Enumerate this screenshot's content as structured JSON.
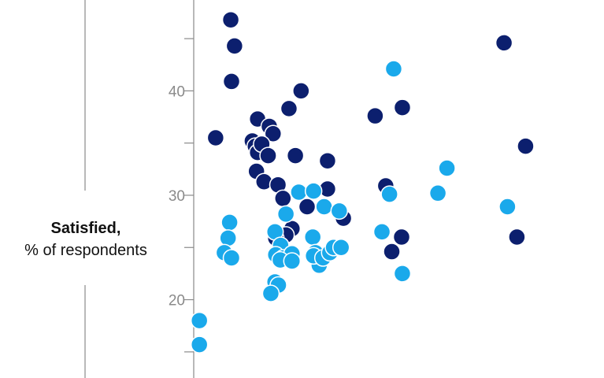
{
  "chart_data": {
    "type": "scatter",
    "ylabel_bold": "Satisfied,",
    "ylabel_unit": "% of respondents",
    "ylim": [
      12.5,
      48.7
    ],
    "xlim": [
      0,
      100
    ],
    "yticks": [
      20,
      30,
      40
    ],
    "minor_yticks": [
      15,
      25,
      35,
      45
    ],
    "grid": false,
    "colors": {
      "series_a": "#0c1f6e",
      "series_b": "#1aa9eb",
      "axis": "#8a8a8a"
    },
    "series": [
      {
        "color": "#0c1f6e",
        "points": [
          {
            "x": 9.8,
            "y": 46.8
          },
          {
            "x": 10.8,
            "y": 44.3
          },
          {
            "x": 10.0,
            "y": 40.9
          },
          {
            "x": 5.8,
            "y": 35.5
          },
          {
            "x": 16.9,
            "y": 37.3
          },
          {
            "x": 20.0,
            "y": 36.6
          },
          {
            "x": 21.0,
            "y": 35.9
          },
          {
            "x": 15.5,
            "y": 35.2
          },
          {
            "x": 16.3,
            "y": 34.7
          },
          {
            "x": 16.9,
            "y": 34.1
          },
          {
            "x": 18.0,
            "y": 34.9
          },
          {
            "x": 19.7,
            "y": 33.8
          },
          {
            "x": 16.6,
            "y": 32.3
          },
          {
            "x": 18.6,
            "y": 31.3
          },
          {
            "x": 22.3,
            "y": 31.0
          },
          {
            "x": 25.2,
            "y": 38.3
          },
          {
            "x": 28.4,
            "y": 40.0
          },
          {
            "x": 26.9,
            "y": 33.8
          },
          {
            "x": 23.6,
            "y": 29.7
          },
          {
            "x": 30.0,
            "y": 28.9
          },
          {
            "x": 35.4,
            "y": 33.3
          },
          {
            "x": 35.4,
            "y": 30.6
          },
          {
            "x": 39.6,
            "y": 27.8
          },
          {
            "x": 26.0,
            "y": 26.8
          },
          {
            "x": 24.4,
            "y": 26.2
          },
          {
            "x": 21.7,
            "y": 25.9
          },
          {
            "x": 48.0,
            "y": 37.6
          },
          {
            "x": 55.2,
            "y": 38.4
          },
          {
            "x": 50.8,
            "y": 30.9
          },
          {
            "x": 52.4,
            "y": 24.6
          },
          {
            "x": 55.0,
            "y": 26.0
          },
          {
            "x": 82.1,
            "y": 44.6
          },
          {
            "x": 87.8,
            "y": 34.7
          },
          {
            "x": 85.5,
            "y": 26.0
          }
        ]
      },
      {
        "color": "#1aa9eb",
        "points": [
          {
            "x": 1.5,
            "y": 18.0
          },
          {
            "x": 1.5,
            "y": 15.7
          },
          {
            "x": 9.5,
            "y": 27.4
          },
          {
            "x": 9.1,
            "y": 25.9
          },
          {
            "x": 8.1,
            "y": 24.5
          },
          {
            "x": 10.0,
            "y": 24.0
          },
          {
            "x": 24.4,
            "y": 28.2
          },
          {
            "x": 21.5,
            "y": 26.5
          },
          {
            "x": 23.0,
            "y": 25.2
          },
          {
            "x": 21.7,
            "y": 24.3
          },
          {
            "x": 23.7,
            "y": 24.0
          },
          {
            "x": 26.0,
            "y": 24.4
          },
          {
            "x": 22.9,
            "y": 23.8
          },
          {
            "x": 26.0,
            "y": 23.7
          },
          {
            "x": 21.5,
            "y": 21.7
          },
          {
            "x": 22.4,
            "y": 21.4
          },
          {
            "x": 20.4,
            "y": 20.6
          },
          {
            "x": 27.8,
            "y": 30.3
          },
          {
            "x": 31.7,
            "y": 30.4
          },
          {
            "x": 34.5,
            "y": 28.9
          },
          {
            "x": 38.5,
            "y": 28.5
          },
          {
            "x": 31.5,
            "y": 26.0
          },
          {
            "x": 32.2,
            "y": 24.5
          },
          {
            "x": 33.2,
            "y": 23.3
          },
          {
            "x": 31.7,
            "y": 24.2
          },
          {
            "x": 34.2,
            "y": 24.0
          },
          {
            "x": 36.0,
            "y": 24.5
          },
          {
            "x": 37.0,
            "y": 25.0
          },
          {
            "x": 39.0,
            "y": 25.0
          },
          {
            "x": 49.8,
            "y": 26.5
          },
          {
            "x": 51.8,
            "y": 30.1
          },
          {
            "x": 55.2,
            "y": 22.5
          },
          {
            "x": 52.9,
            "y": 42.1
          },
          {
            "x": 64.6,
            "y": 30.2
          },
          {
            "x": 67.0,
            "y": 32.6
          },
          {
            "x": 83.0,
            "y": 28.9
          }
        ]
      }
    ]
  }
}
